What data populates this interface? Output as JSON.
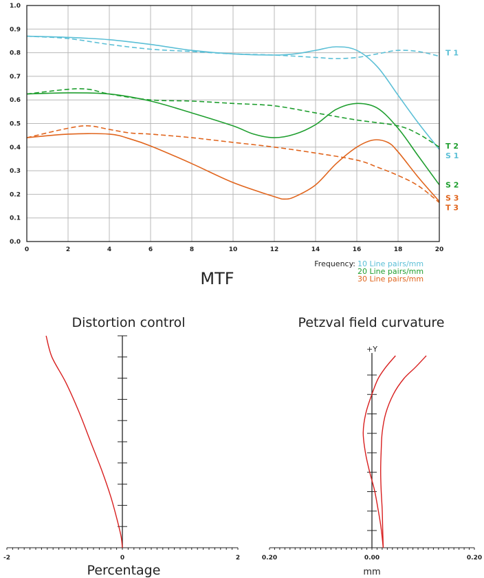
{
  "chart_data": [
    {
      "type": "line",
      "title": "MTF",
      "xlim": [
        0,
        20
      ],
      "ylim": [
        0,
        1.0
      ],
      "x_ticks": [
        0,
        2,
        4,
        6,
        8,
        10,
        12,
        14,
        16,
        18,
        20
      ],
      "y_ticks": [
        "0.0",
        "0.1",
        "0.2",
        "0.3",
        "0.4",
        "0.5",
        "0.6",
        "0.7",
        "0.8",
        "0.9",
        "1.0"
      ],
      "grid": true,
      "legend": {
        "title": "Frequency:",
        "items": [
          "10 Line pairs/mm",
          "20 Line pairs/mm",
          "30 Line pairs/mm"
        ]
      },
      "colors": {
        "10": "#5bbfd6",
        "20": "#1e9e2e",
        "30": "#e0641c"
      },
      "series": [
        {
          "name": "T1",
          "frequency": "10",
          "style": "dashed",
          "x": [
            0,
            2,
            4,
            6,
            8,
            10,
            12,
            14,
            15,
            16,
            17,
            18,
            19,
            20
          ],
          "y": [
            0.87,
            0.86,
            0.835,
            0.815,
            0.805,
            0.795,
            0.79,
            0.78,
            0.775,
            0.78,
            0.795,
            0.81,
            0.805,
            0.785
          ]
        },
        {
          "name": "S1",
          "frequency": "10",
          "style": "solid",
          "x": [
            0,
            2,
            4,
            6,
            8,
            10,
            12,
            13,
            14,
            15,
            16,
            17,
            18,
            19,
            20
          ],
          "y": [
            0.87,
            0.865,
            0.855,
            0.835,
            0.81,
            0.795,
            0.79,
            0.795,
            0.81,
            0.825,
            0.81,
            0.74,
            0.62,
            0.5,
            0.39
          ]
        },
        {
          "name": "T2",
          "frequency": "20",
          "style": "dashed",
          "x": [
            0,
            2,
            3,
            4,
            6,
            8,
            10,
            12,
            14,
            16,
            18,
            19,
            20
          ],
          "y": [
            0.625,
            0.645,
            0.645,
            0.625,
            0.6,
            0.595,
            0.585,
            0.575,
            0.545,
            0.515,
            0.49,
            0.455,
            0.4
          ]
        },
        {
          "name": "S2",
          "frequency": "20",
          "style": "solid",
          "x": [
            0,
            2,
            4,
            6,
            8,
            10,
            11,
            12,
            13,
            14,
            15,
            16,
            17,
            18,
            19,
            20
          ],
          "y": [
            0.625,
            0.63,
            0.625,
            0.595,
            0.545,
            0.49,
            0.455,
            0.44,
            0.455,
            0.495,
            0.56,
            0.585,
            0.565,
            0.48,
            0.36,
            0.24
          ]
        },
        {
          "name": "T3",
          "frequency": "30",
          "style": "dashed",
          "x": [
            0,
            2,
            3,
            4,
            5,
            6,
            8,
            10,
            12,
            14,
            16,
            17,
            18,
            19,
            20
          ],
          "y": [
            0.44,
            0.48,
            0.49,
            0.475,
            0.46,
            0.455,
            0.44,
            0.42,
            0.4,
            0.375,
            0.345,
            0.315,
            0.28,
            0.235,
            0.165
          ]
        },
        {
          "name": "S3",
          "frequency": "30",
          "style": "solid",
          "x": [
            0,
            2,
            4,
            5,
            6,
            8,
            10,
            12,
            12.5,
            13,
            14,
            15,
            16,
            16.8,
            17.5,
            18,
            19,
            20
          ],
          "y": [
            0.44,
            0.455,
            0.455,
            0.435,
            0.405,
            0.33,
            0.25,
            0.19,
            0.18,
            0.19,
            0.24,
            0.33,
            0.4,
            0.43,
            0.42,
            0.38,
            0.27,
            0.17
          ]
        }
      ]
    },
    {
      "type": "line",
      "title": "Distortion control",
      "xlabel": "Percentage",
      "xlim": [
        -2,
        2
      ],
      "x_ticks": [
        "-2",
        "0",
        "2"
      ],
      "series": [
        {
          "x": [
            -1.32,
            -1.22,
            -0.98,
            -0.75,
            -0.55,
            -0.35,
            -0.2,
            -0.08,
            -0.02,
            0.0
          ],
          "y": [
            1.0,
            0.9,
            0.78,
            0.64,
            0.5,
            0.36,
            0.24,
            0.12,
            0.05,
            0.0
          ]
        }
      ]
    },
    {
      "type": "line",
      "title": "Petzval field curvature",
      "xlabel": "mm",
      "ylabel": "+Y",
      "xlim": [
        -0.2,
        0.2
      ],
      "x_ticks": [
        "0.20",
        "0.00",
        "0.20"
      ],
      "series": [
        {
          "x": [
            0.022,
            0.018,
            0.012,
            0.005,
            -0.005,
            -0.013,
            -0.017,
            -0.012,
            0.0,
            0.012,
            0.027,
            0.046
          ],
          "y": [
            0.0,
            0.1,
            0.2,
            0.3,
            0.4,
            0.5,
            0.6,
            0.7,
            0.8,
            0.88,
            0.94,
            1.0
          ]
        },
        {
          "x": [
            0.022,
            0.021,
            0.02,
            0.018,
            0.017,
            0.018,
            0.02,
            0.027,
            0.042,
            0.062,
            0.085,
            0.106
          ],
          "y": [
            0.0,
            0.1,
            0.2,
            0.3,
            0.4,
            0.5,
            0.6,
            0.7,
            0.8,
            0.88,
            0.94,
            1.0
          ]
        }
      ]
    }
  ],
  "mtf": {
    "labels": {
      "T1": "T 1",
      "T2": "T 2",
      "S1": "S 1",
      "S2": "S 2",
      "S3": "S 3",
      "T3": "T 3"
    }
  }
}
